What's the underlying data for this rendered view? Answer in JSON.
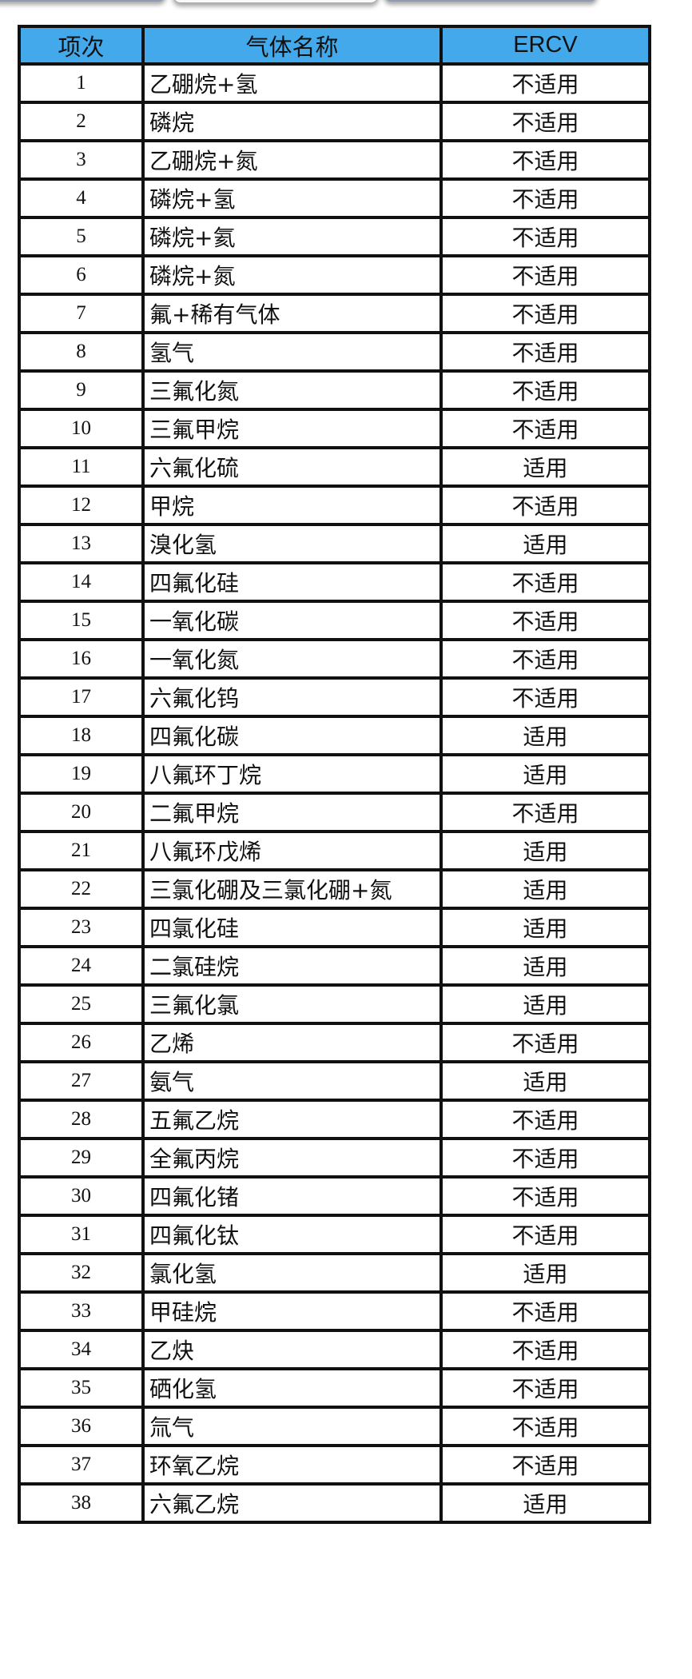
{
  "header_color": "#44a9ea",
  "table": {
    "headers": [
      "项次",
      "气体名称",
      "ERCV"
    ],
    "rows": [
      [
        "1",
        "乙硼烷+氢",
        "不适用"
      ],
      [
        "2",
        "磷烷",
        "不适用"
      ],
      [
        "3",
        "乙硼烷+氮",
        "不适用"
      ],
      [
        "4",
        "磷烷+氢",
        "不适用"
      ],
      [
        "5",
        "磷烷+氦",
        "不适用"
      ],
      [
        "6",
        "磷烷+氮",
        "不适用"
      ],
      [
        "7",
        "氟+稀有气体",
        "不适用"
      ],
      [
        "8",
        "氢气",
        "不适用"
      ],
      [
        "9",
        "三氟化氮",
        "不适用"
      ],
      [
        "10",
        "三氟甲烷",
        "不适用"
      ],
      [
        "11",
        "六氟化硫",
        "适用"
      ],
      [
        "12",
        "甲烷",
        "不适用"
      ],
      [
        "13",
        "溴化氢",
        "适用"
      ],
      [
        "14",
        "四氟化硅",
        "不适用"
      ],
      [
        "15",
        "一氧化碳",
        "不适用"
      ],
      [
        "16",
        "一氧化氮",
        "不适用"
      ],
      [
        "17",
        "六氟化钨",
        "不适用"
      ],
      [
        "18",
        "四氟化碳",
        "适用"
      ],
      [
        "19",
        "八氟环丁烷",
        "适用"
      ],
      [
        "20",
        "二氟甲烷",
        "不适用"
      ],
      [
        "21",
        "八氟环戊烯",
        "适用"
      ],
      [
        "22",
        "三氯化硼及三氯化硼+氮",
        "适用"
      ],
      [
        "23",
        "四氯化硅",
        "适用"
      ],
      [
        "24",
        "二氯硅烷",
        "适用"
      ],
      [
        "25",
        "三氟化氯",
        "适用"
      ],
      [
        "26",
        "乙烯",
        "不适用"
      ],
      [
        "27",
        "氨气",
        "适用"
      ],
      [
        "28",
        "五氟乙烷",
        "不适用"
      ],
      [
        "29",
        "全氟丙烷",
        "不适用"
      ],
      [
        "30",
        "四氟化锗",
        "不适用"
      ],
      [
        "31",
        "四氟化钛",
        "不适用"
      ],
      [
        "32",
        "氯化氢",
        "适用"
      ],
      [
        "33",
        "甲硅烷",
        "不适用"
      ],
      [
        "34",
        "乙炔",
        "不适用"
      ],
      [
        "35",
        "硒化氢",
        "不适用"
      ],
      [
        "36",
        "氚气",
        "不适用"
      ],
      [
        "37",
        "环氧乙烷",
        "不适用"
      ],
      [
        "38",
        "六氟乙烷",
        "适用"
      ]
    ]
  }
}
